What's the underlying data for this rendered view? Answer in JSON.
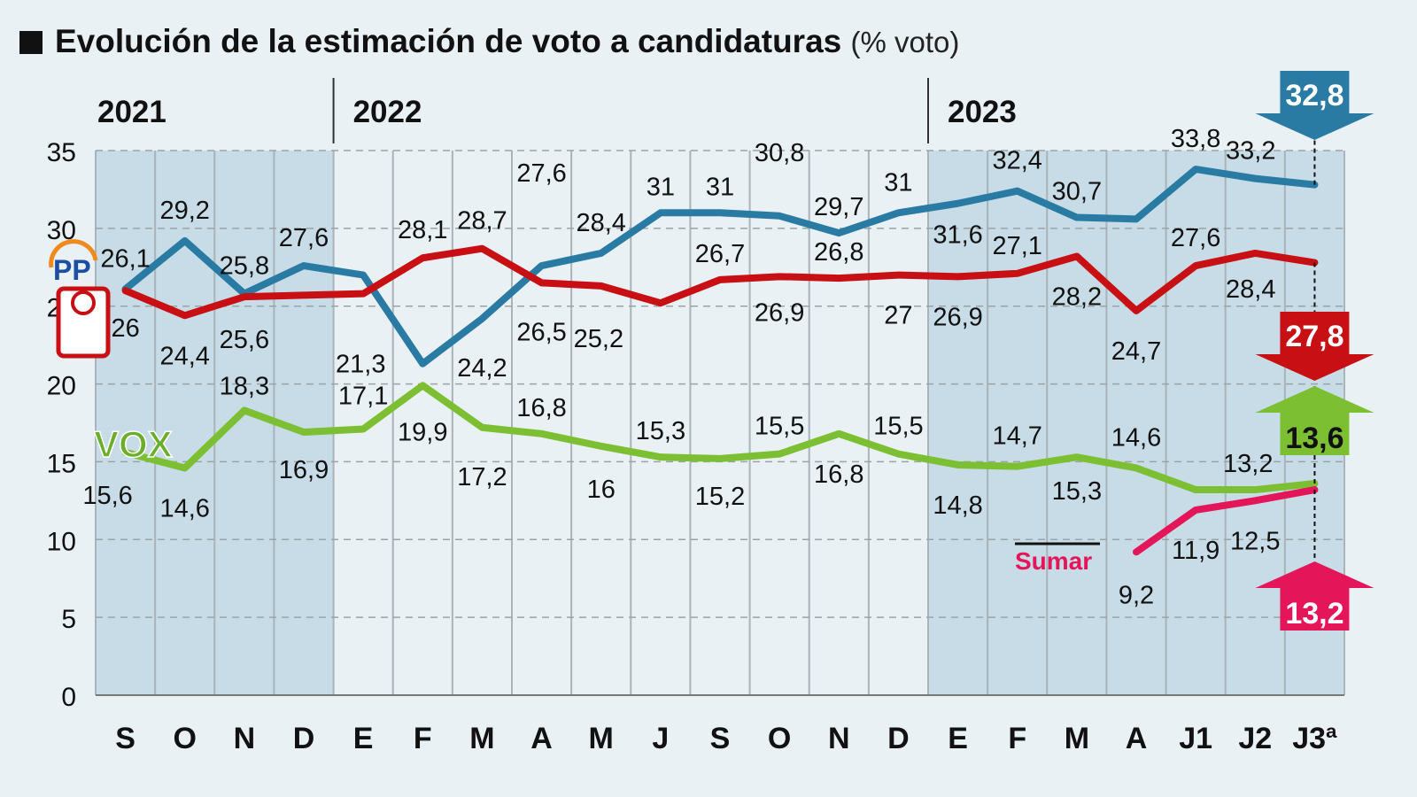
{
  "chart_data": {
    "type": "line",
    "title": "Evolución de la estimación de voto a candidaturas",
    "unit_label": "(% voto)",
    "categories": [
      "S",
      "O",
      "N",
      "D",
      "E",
      "F",
      "M",
      "A",
      "M",
      "J",
      "S",
      "O",
      "N",
      "D",
      "E",
      "F",
      "M",
      "A",
      "J1",
      "J2",
      "J3ª"
    ],
    "years": [
      {
        "label": "2021",
        "start_index": 0
      },
      {
        "label": "2022",
        "start_index": 4
      },
      {
        "label": "2023",
        "start_index": 14
      }
    ],
    "shaded_ranges": [
      [
        0,
        3
      ],
      [
        14,
        20
      ]
    ],
    "ylim": [
      0,
      35
    ],
    "yticks": [
      0,
      5,
      10,
      15,
      20,
      25,
      30,
      35
    ],
    "grid": true,
    "series": [
      {
        "name": "PP",
        "color": "#2a7ba3",
        "values": [
          26.1,
          29.2,
          25.8,
          27.6,
          27.0,
          21.3,
          24.2,
          27.6,
          28.4,
          31,
          31,
          30.8,
          29.7,
          31,
          31.6,
          32.4,
          30.7,
          30.6,
          33.8,
          33.2,
          32.8
        ],
        "labels": [
          "26,1",
          "29,2",
          "25,8",
          "27,6",
          null,
          "21,3",
          "24,2",
          "27,6",
          "28,4",
          "31",
          "31",
          "30,8",
          "29,7",
          "31",
          "31,6",
          "32,4",
          "30,7",
          null,
          "33,8",
          "33,2",
          null
        ],
        "final": "32,8",
        "final_direction": "down"
      },
      {
        "name": "PSOE",
        "color": "#c80f14",
        "values": [
          26,
          24.4,
          25.6,
          25.7,
          25.8,
          28.1,
          28.7,
          26.5,
          26.3,
          25.2,
          26.7,
          26.9,
          26.8,
          27,
          26.9,
          27.1,
          28.2,
          24.7,
          27.6,
          28.4,
          27.8
        ],
        "labels": [
          "26",
          "24,4",
          "25,6",
          null,
          null,
          "28,1",
          "28,7",
          "26,5",
          null,
          "25,2",
          "26,7",
          "26,9",
          "26,8",
          "27",
          "26,9",
          "27,1",
          "28,2",
          "24,7",
          "27,6",
          "28,4",
          null
        ],
        "final": "27,8",
        "final_direction": "down"
      },
      {
        "name": "VOX",
        "color": "#7dbf32",
        "values": [
          15.6,
          14.6,
          18.3,
          16.9,
          17.1,
          19.9,
          17.2,
          16.8,
          16,
          15.3,
          15.2,
          15.5,
          16.8,
          15.5,
          14.8,
          14.7,
          15.3,
          14.6,
          13.2,
          13.2,
          13.6
        ],
        "labels": [
          "15,6",
          "14,6",
          "18,3",
          "16,9",
          "17,1",
          "19,9",
          "17,2",
          "16,8",
          "16",
          "15,3",
          "15,2",
          "15,5",
          "16,8",
          "15,5",
          "14,8",
          "14,7",
          "15,3",
          "14,6",
          null,
          "13,2",
          null
        ],
        "final": "13,6",
        "final_direction": "up"
      },
      {
        "name": "Sumar",
        "color": "#e5155a",
        "values": [
          null,
          null,
          null,
          null,
          null,
          null,
          null,
          null,
          null,
          null,
          null,
          null,
          null,
          null,
          null,
          null,
          null,
          9.2,
          11.9,
          12.5,
          13.2
        ],
        "labels": [
          null,
          null,
          null,
          null,
          null,
          null,
          null,
          null,
          null,
          null,
          null,
          null,
          null,
          null,
          null,
          null,
          null,
          "9,2",
          "11,9",
          "12,5",
          null
        ],
        "final": "13,2",
        "final_direction": "up"
      }
    ]
  }
}
